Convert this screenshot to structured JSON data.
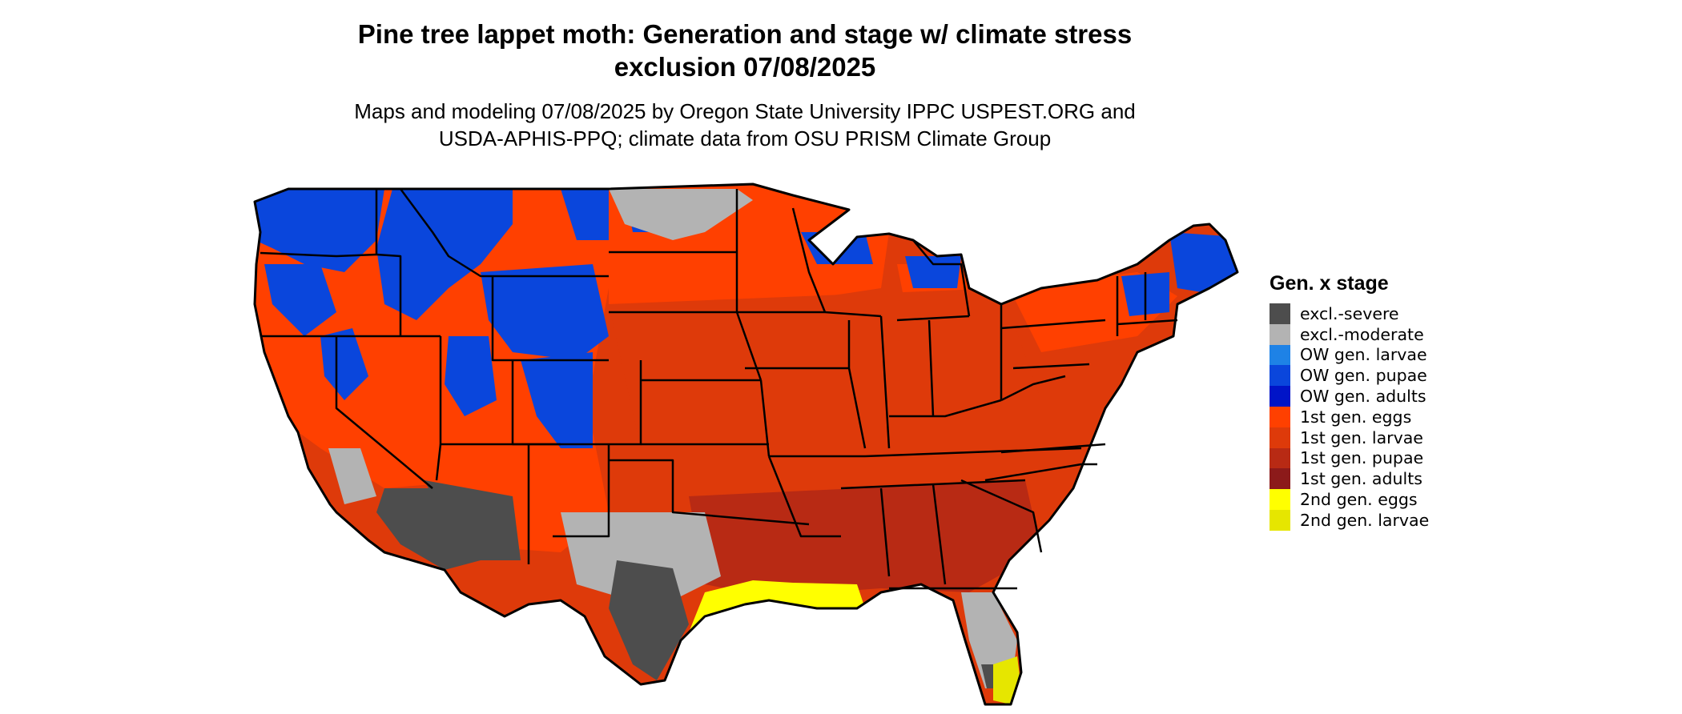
{
  "title_line1": "Pine tree lappet moth: Generation and stage w/ climate stress",
  "title_line2": "exclusion 07/08/2025",
  "subtitle_line1": "Maps and modeling 07/08/2025 by Oregon State University IPPC USPEST.ORG and",
  "subtitle_line2": "USDA-APHIS-PPQ; climate data from OSU PRISM Climate Group",
  "legend": {
    "title": "Gen. x stage",
    "items": [
      {
        "label": "excl.-severe",
        "color": "#4d4d4d"
      },
      {
        "label": "excl.-moderate",
        "color": "#b3b3b3"
      },
      {
        "label": "OW gen. larvae",
        "color": "#1e82e6"
      },
      {
        "label": "OW gen. pupae",
        "color": "#0a46dc"
      },
      {
        "label": "OW gen. adults",
        "color": "#0014c8"
      },
      {
        "label": "1st gen. eggs",
        "color": "#ff4000"
      },
      {
        "label": "1st gen. larvae",
        "color": "#de3a0a"
      },
      {
        "label": "1st gen. pupae",
        "color": "#b82a14"
      },
      {
        "label": "1st gen. adults",
        "color": "#8c1a1a"
      },
      {
        "label": "2nd gen. eggs",
        "color": "#ffff00"
      },
      {
        "label": "2nd gen. larvae",
        "color": "#e6e600"
      }
    ]
  }
}
